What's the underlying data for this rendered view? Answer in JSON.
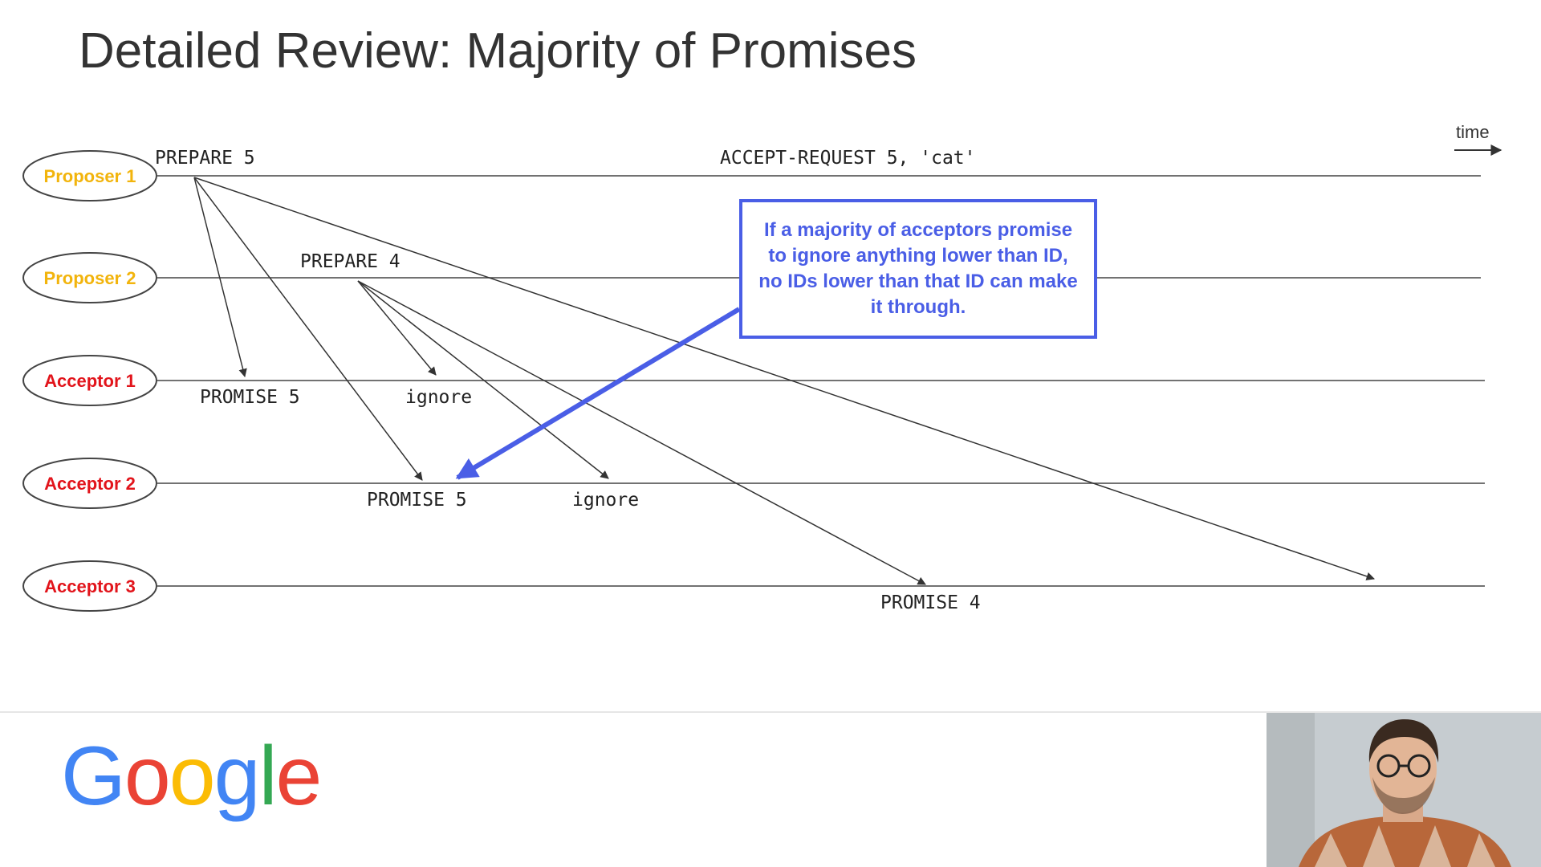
{
  "slide": {
    "title": "Detailed Review: Majority of Promises"
  },
  "timeline": {
    "time_label": "time"
  },
  "nodes": [
    {
      "id": "proposer-1",
      "label": "Proposer 1",
      "color": "#f2b40c"
    },
    {
      "id": "proposer-2",
      "label": "Proposer 2",
      "color": "#f2b40c"
    },
    {
      "id": "acceptor-1",
      "label": "Acceptor 1",
      "color": "#e2141b"
    },
    {
      "id": "acceptor-2",
      "label": "Acceptor 2",
      "color": "#e2141b"
    },
    {
      "id": "acceptor-3",
      "label": "Acceptor 3",
      "color": "#e2141b"
    }
  ],
  "messages": {
    "prepare_5": "PREPARE 5",
    "accept_request": "ACCEPT-REQUEST 5, 'cat'",
    "prepare_4": "PREPARE 4",
    "a1_promise_5": "PROMISE 5",
    "a1_ignore": "ignore",
    "a2_promise_5": "PROMISE 5",
    "a2_ignore": "ignore",
    "a3_promise_4": "PROMISE 4"
  },
  "callout": {
    "text": "If a majority of acceptors promise to ignore anything lower than ID, no IDs lower than that ID can make it through."
  },
  "footer": {
    "logo_letters": [
      {
        "char": "G",
        "color": "#4285f4"
      },
      {
        "char": "o",
        "color": "#ea4335"
      },
      {
        "char": "o",
        "color": "#fbbc05"
      },
      {
        "char": "g",
        "color": "#4285f4"
      },
      {
        "char": "l",
        "color": "#34a853"
      },
      {
        "char": "e",
        "color": "#ea4335"
      }
    ]
  },
  "colors": {
    "accent": "#4a5ee6",
    "proposer": "#f2b40c",
    "acceptor": "#e2141b",
    "line": "#444444"
  }
}
